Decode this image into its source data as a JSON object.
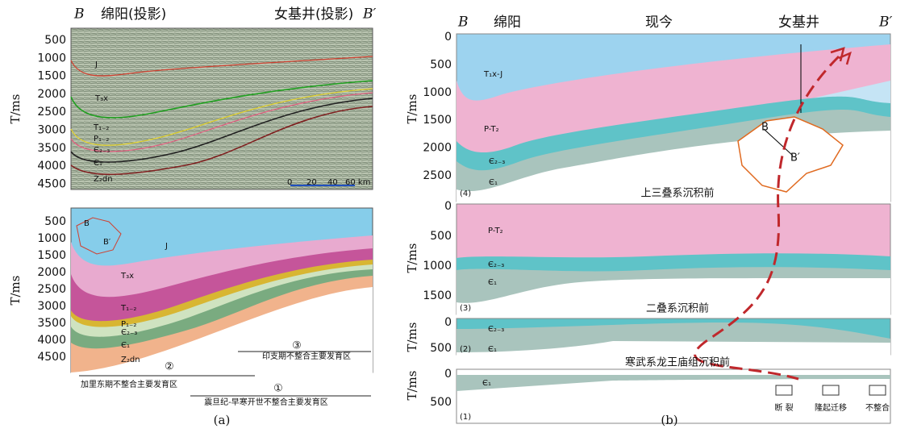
{
  "panel_a": {
    "seismic": {
      "left_end": "B",
      "left_well": "绵阳(投影)",
      "right_well": "女基井(投影)",
      "right_end": "B′",
      "y_label": "T/ms",
      "yticks": [
        500,
        1000,
        1500,
        2000,
        2500,
        3000,
        3500,
        4000,
        4500
      ],
      "layers": [
        "J",
        "T₃x",
        "T₁₋₂",
        "P₁₋₂",
        "Є₂₋₃",
        "Є₁",
        "Z₂dn"
      ],
      "scale": [
        "0",
        "20",
        "40",
        "60 km"
      ]
    },
    "model": {
      "y_label": "T/ms",
      "yticks": [
        500,
        1000,
        1500,
        2000,
        2500,
        3000,
        3500,
        4000,
        4500
      ],
      "layers": [
        "J",
        "T₃x",
        "T₁₋₂",
        "P₁₋₂",
        "Є₂₋₃",
        "Є₁",
        "Z₂dn"
      ],
      "inset": [
        "B",
        "B′"
      ],
      "zones": [
        {
          "number": "③",
          "label": "印支期不整合主要发育区"
        },
        {
          "number": "②",
          "label": "加里东期不整合主要发育区"
        },
        {
          "number": "①",
          "label": "震旦纪-早寒开世不整合主要发育区"
        }
      ]
    },
    "caption": "(a)"
  },
  "panel_b": {
    "header": {
      "left_end": "B",
      "left_well": "绵阳",
      "stage": "现今",
      "right_well": "女基井",
      "right_end": "B′"
    },
    "y_label": "T/ms",
    "sections": [
      {
        "number": "(4)",
        "yticks": [
          0,
          500,
          1000,
          1500,
          2000,
          2500
        ],
        "layers": [
          "T₁x-J",
          "P-T₂",
          "Є₂₋₃",
          "Є₁"
        ],
        "caption": "上三叠系沉积前",
        "inset": [
          "B",
          "B′"
        ]
      },
      {
        "number": "(3)",
        "yticks": [
          0,
          500,
          1000,
          1500
        ],
        "layers": [
          "P-T₂",
          "Є₂₋₃",
          "Є₁"
        ],
        "caption": "二叠系沉积前"
      },
      {
        "number": "(2)",
        "yticks": [
          0,
          500
        ],
        "layers": [
          "Є₂₋₃",
          "Є₁"
        ],
        "caption": "寒武系龙王庙组沉积前"
      },
      {
        "number": "(1)",
        "yticks": [
          0,
          500
        ],
        "layers": [
          "Є₁"
        ]
      }
    ],
    "legend": [
      "断 裂",
      "隆起迁移",
      "不整合"
    ],
    "caption": "(b)"
  }
}
